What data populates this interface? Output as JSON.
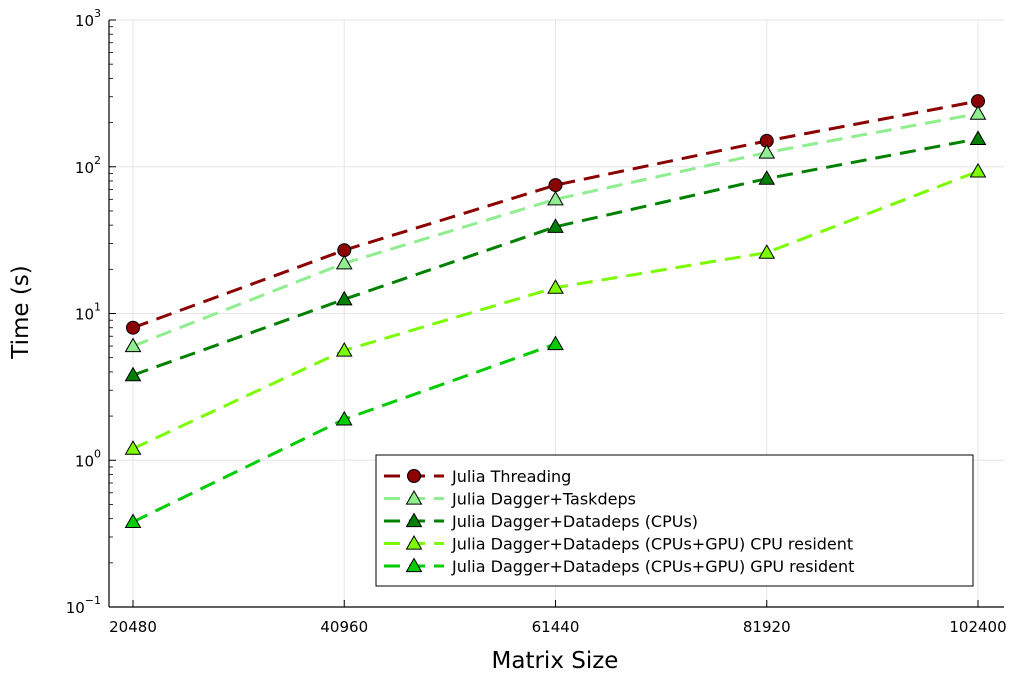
{
  "chart_data": {
    "type": "line",
    "xlabel": "Matrix Size",
    "ylabel": "Time (s)",
    "yscale": "log",
    "ylim": [
      0.1,
      1000
    ],
    "xlim": [
      20480,
      102400
    ],
    "x_ticks": [
      "20480",
      "40960",
      "61440",
      "81920",
      "102400"
    ],
    "y_ticks": [
      {
        "base": "10",
        "exp": "−1"
      },
      {
        "base": "10",
        "exp": "0"
      },
      {
        "base": "10",
        "exp": "1"
      },
      {
        "base": "10",
        "exp": "2"
      },
      {
        "base": "10",
        "exp": "3"
      }
    ],
    "grid": true,
    "legend_position": "bottom-right",
    "series": [
      {
        "name": "Julia Threading",
        "color": "#8b0000",
        "marker": "circle",
        "x": [
          20480,
          40960,
          61440,
          81920,
          102400
        ],
        "y": [
          8.0,
          27,
          75,
          150,
          280
        ]
      },
      {
        "name": "Julia Dagger+Taskdeps",
        "color": "#90ee90",
        "marker": "triangle",
        "x": [
          20480,
          40960,
          61440,
          81920,
          102400
        ],
        "y": [
          6.0,
          22,
          60,
          125,
          230
        ]
      },
      {
        "name": "Julia Dagger+Datadeps (CPUs)",
        "color": "#008000",
        "marker": "triangle",
        "x": [
          20480,
          40960,
          61440,
          81920,
          102400
        ],
        "y": [
          3.8,
          12.5,
          39,
          83,
          155
        ]
      },
      {
        "name": "Julia Dagger+Datadeps (CPUs+GPU) CPU resident",
        "color": "#7cfc00",
        "marker": "triangle",
        "x": [
          20480,
          40960,
          61440,
          81920,
          102400
        ],
        "y": [
          1.2,
          5.6,
          15,
          26,
          93
        ]
      },
      {
        "name": "Julia Dagger+Datadeps (CPUs+GPU) GPU resident",
        "color": "#00cd00",
        "marker": "triangle",
        "x": [
          20480,
          40960,
          61440
        ],
        "y": [
          0.38,
          1.9,
          6.2
        ]
      }
    ]
  }
}
